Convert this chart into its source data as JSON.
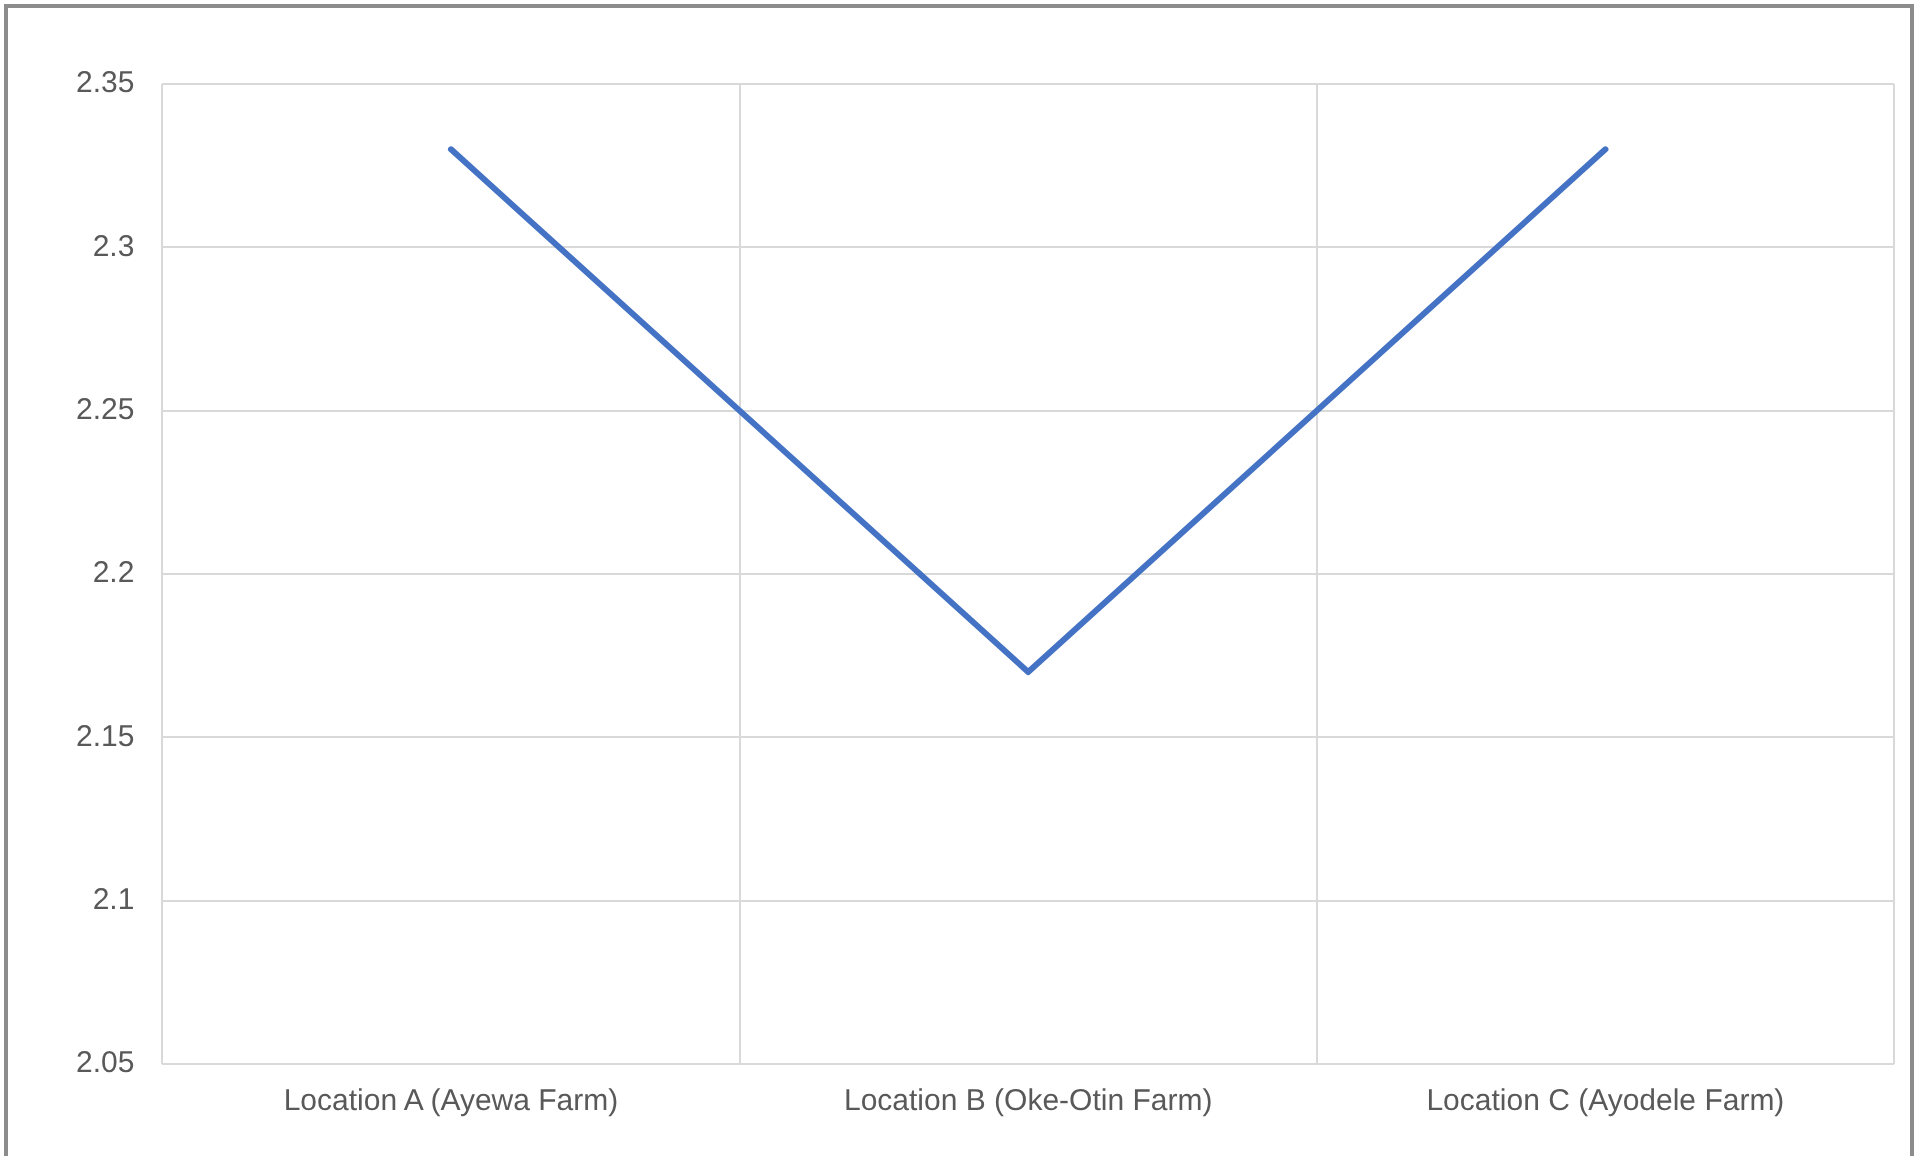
{
  "chart_data": {
    "type": "line",
    "categories": [
      "Location A (Ayewa Farm)",
      "Location B (Oke-Otin Farm)",
      "Location C (Ayodele Farm)"
    ],
    "series": [
      {
        "color": "#4472c4",
        "values": [
          2.33,
          2.17,
          2.33
        ]
      }
    ],
    "ylim": [
      2.05,
      2.35
    ],
    "yticks": [
      2.05,
      2.1,
      2.15,
      2.2,
      2.25,
      2.3,
      2.35
    ],
    "grid": true,
    "legend": false,
    "marker": "none",
    "line_style": "solid"
  }
}
